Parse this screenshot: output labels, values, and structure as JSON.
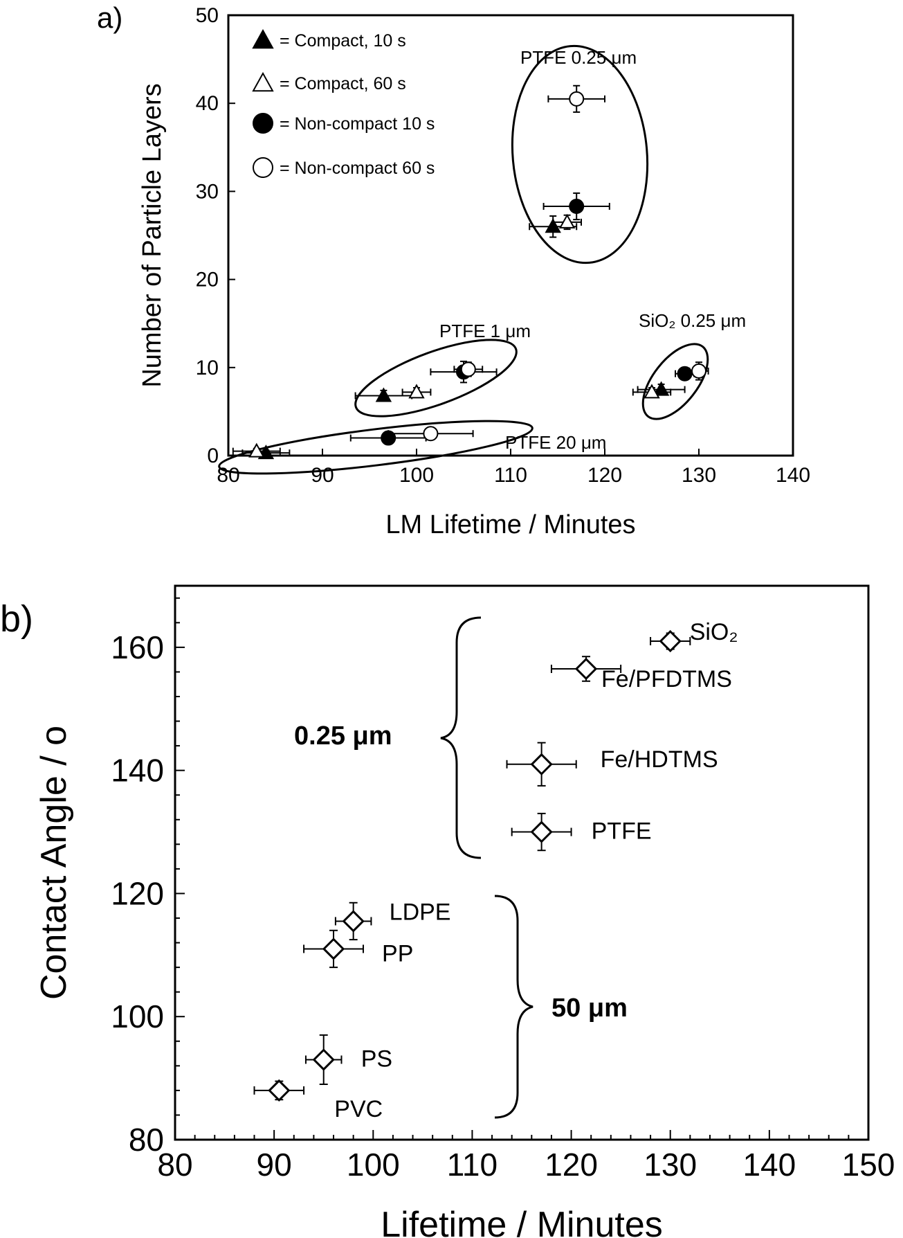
{
  "chart_data": [
    {
      "panel": "a)",
      "type": "scatter",
      "xlabel": "LM Lifetime / Minutes",
      "ylabel": "Number of Particle Layers",
      "xlim": [
        80,
        140
      ],
      "ylim": [
        0,
        50
      ],
      "x_ticks": [
        80,
        90,
        100,
        110,
        120,
        130,
        140
      ],
      "y_ticks": [
        0,
        10,
        20,
        30,
        40,
        50
      ],
      "legend_position": "top-left",
      "series": [
        {
          "name": "= Compact, 10 s",
          "marker": "triangle-filled",
          "points": [
            {
              "x": 84.0,
              "y": 0.3,
              "xerr": 2.5,
              "yerr": 0.3
            },
            {
              "x": 96.5,
              "y": 6.8,
              "xerr": 3.0,
              "yerr": 0.6
            },
            {
              "x": 114.5,
              "y": 26.0,
              "xerr": 2.5,
              "yerr": 1.2
            },
            {
              "x": 126.0,
              "y": 7.5,
              "xerr": 2.5,
              "yerr": 0.6
            }
          ]
        },
        {
          "name": "= Compact, 60 s",
          "marker": "triangle-open",
          "points": [
            {
              "x": 83.0,
              "y": 0.5,
              "xerr": 2.5,
              "yerr": 0.3
            },
            {
              "x": 100.0,
              "y": 7.2,
              "xerr": 1.5,
              "yerr": 0.5
            },
            {
              "x": 116.0,
              "y": 26.5,
              "xerr": 1.5,
              "yerr": 0.8
            },
            {
              "x": 125.0,
              "y": 7.2,
              "xerr": 2.0,
              "yerr": 0.5
            }
          ]
        },
        {
          "name": "= Non-compact 10 s",
          "marker": "circle-filled",
          "points": [
            {
              "x": 97.0,
              "y": 2.0,
              "xerr": 4.0,
              "yerr": 0.4
            },
            {
              "x": 105.0,
              "y": 9.5,
              "xerr": 3.5,
              "yerr": 1.2
            },
            {
              "x": 117.0,
              "y": 28.3,
              "xerr": 3.5,
              "yerr": 1.5
            },
            {
              "x": 128.5,
              "y": 9.3,
              "xerr": 1.0,
              "yerr": 0.5
            }
          ]
        },
        {
          "name": "= Non-compact 60 s",
          "marker": "circle-open",
          "points": [
            {
              "x": 101.5,
              "y": 2.5,
              "xerr": 4.5,
              "yerr": 0.4
            },
            {
              "x": 105.5,
              "y": 9.8,
              "xerr": 1.5,
              "yerr": 0.8
            },
            {
              "x": 117.0,
              "y": 40.5,
              "xerr": 3.0,
              "yerr": 1.5
            },
            {
              "x": 130.0,
              "y": 9.6,
              "xerr": 1.0,
              "yerr": 1.0
            }
          ]
        }
      ],
      "annotations": [
        {
          "text": "PTFE 0.25 μm"
        },
        {
          "text": "PTFE 1 μm"
        },
        {
          "text": "SiO₂ 0.25 μm"
        },
        {
          "text": "PTFE 20 μm"
        }
      ]
    },
    {
      "panel": "b)",
      "type": "scatter",
      "xlabel": "Lifetime / Minutes",
      "ylabel": "Contact Angle / o",
      "xlim": [
        80,
        150
      ],
      "ylim": [
        80,
        170
      ],
      "x_ticks": [
        80,
        90,
        100,
        110,
        120,
        130,
        140,
        150
      ],
      "y_ticks": [
        80,
        100,
        120,
        140,
        160
      ],
      "marker": "diamond-open",
      "points": [
        {
          "label": "SiO₂",
          "x": 130.0,
          "y": 161.0,
          "xerr": 2.0,
          "yerr": 1.3
        },
        {
          "label": "Fe/PFDTMS",
          "x": 121.5,
          "y": 156.5,
          "xerr": 3.5,
          "yerr": 2.0
        },
        {
          "label": "Fe/HDTMS",
          "x": 117.0,
          "y": 141.0,
          "xerr": 3.5,
          "yerr": 3.5
        },
        {
          "label": "PTFE",
          "x": 117.0,
          "y": 130.0,
          "xerr": 3.0,
          "yerr": 3.0
        },
        {
          "label": "LDPE",
          "x": 98.0,
          "y": 115.5,
          "xerr": 1.8,
          "yerr": 3.0
        },
        {
          "label": "PP",
          "x": 96.0,
          "y": 111.0,
          "xerr": 3.0,
          "yerr": 3.0
        },
        {
          "label": "PS",
          "x": 95.0,
          "y": 93.0,
          "xerr": 1.8,
          "yerr": 4.0
        },
        {
          "label": "PVC",
          "x": 90.5,
          "y": 88.0,
          "xerr": 2.5,
          "yerr": 1.5
        }
      ],
      "group_labels": [
        {
          "text": "0.25 μm"
        },
        {
          "text": "50 μm"
        }
      ]
    }
  ]
}
